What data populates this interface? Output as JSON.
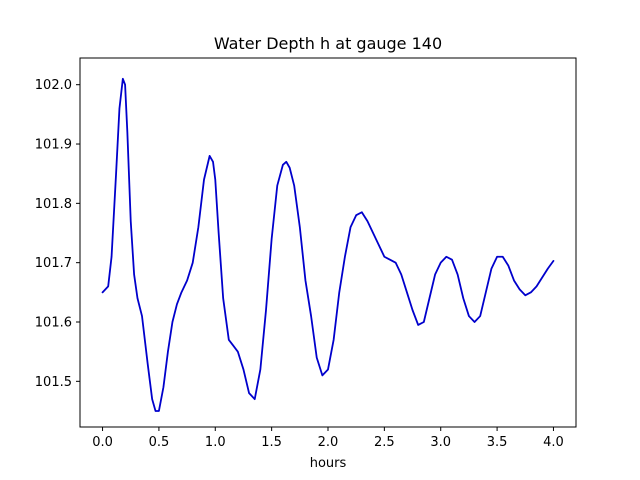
{
  "chart_data": {
    "type": "line",
    "title": "Water Depth h at gauge 140",
    "xlabel": "hours",
    "ylabel": "",
    "xlim": [
      -0.2,
      4.2
    ],
    "ylim": [
      101.423,
      102.045
    ],
    "grid": false,
    "x_ticks": [
      "0.0",
      "0.5",
      "1.0",
      "1.5",
      "2.0",
      "2.5",
      "3.0",
      "3.5",
      "4.0"
    ],
    "y_ticks": [
      "101.5",
      "101.6",
      "101.7",
      "101.8",
      "101.9",
      "102.0"
    ],
    "series": [
      {
        "color": "#0000cc",
        "x": [
          0.0,
          0.05,
          0.08,
          0.12,
          0.15,
          0.18,
          0.2,
          0.22,
          0.25,
          0.28,
          0.31,
          0.35,
          0.4,
          0.44,
          0.47,
          0.5,
          0.54,
          0.58,
          0.62,
          0.66,
          0.7,
          0.75,
          0.8,
          0.85,
          0.9,
          0.95,
          0.98,
          1.0,
          1.03,
          1.07,
          1.12,
          1.16,
          1.2,
          1.25,
          1.3,
          1.35,
          1.4,
          1.45,
          1.5,
          1.55,
          1.6,
          1.63,
          1.66,
          1.7,
          1.75,
          1.8,
          1.85,
          1.9,
          1.95,
          2.0,
          2.05,
          2.1,
          2.15,
          2.2,
          2.25,
          2.3,
          2.35,
          2.4,
          2.45,
          2.5,
          2.55,
          2.6,
          2.65,
          2.7,
          2.75,
          2.8,
          2.85,
          2.9,
          2.95,
          3.0,
          3.05,
          3.1,
          3.15,
          3.2,
          3.25,
          3.3,
          3.35,
          3.4,
          3.45,
          3.5,
          3.55,
          3.6,
          3.65,
          3.7,
          3.75,
          3.8,
          3.85,
          3.9,
          3.95,
          4.0
        ],
        "values": [
          101.65,
          101.66,
          101.71,
          101.85,
          101.96,
          102.01,
          102.0,
          101.92,
          101.77,
          101.68,
          101.64,
          101.61,
          101.53,
          101.47,
          101.45,
          101.45,
          101.49,
          101.55,
          101.6,
          101.63,
          101.65,
          101.67,
          101.7,
          101.76,
          101.84,
          101.88,
          101.87,
          101.84,
          101.75,
          101.64,
          101.57,
          101.56,
          101.55,
          101.52,
          101.48,
          101.47,
          101.52,
          101.62,
          101.74,
          101.83,
          101.865,
          101.87,
          101.86,
          101.83,
          101.76,
          101.67,
          101.61,
          101.54,
          101.51,
          101.52,
          101.57,
          101.65,
          101.71,
          101.76,
          101.78,
          101.785,
          101.77,
          101.75,
          101.73,
          101.71,
          101.705,
          101.7,
          101.68,
          101.65,
          101.62,
          101.595,
          101.6,
          101.64,
          101.68,
          101.7,
          101.71,
          101.705,
          101.68,
          101.64,
          101.61,
          101.6,
          101.61,
          101.65,
          101.69,
          101.71,
          101.71,
          101.695,
          101.67,
          101.655,
          101.645,
          101.65,
          101.66,
          101.675,
          101.69,
          101.703
        ]
      }
    ]
  }
}
